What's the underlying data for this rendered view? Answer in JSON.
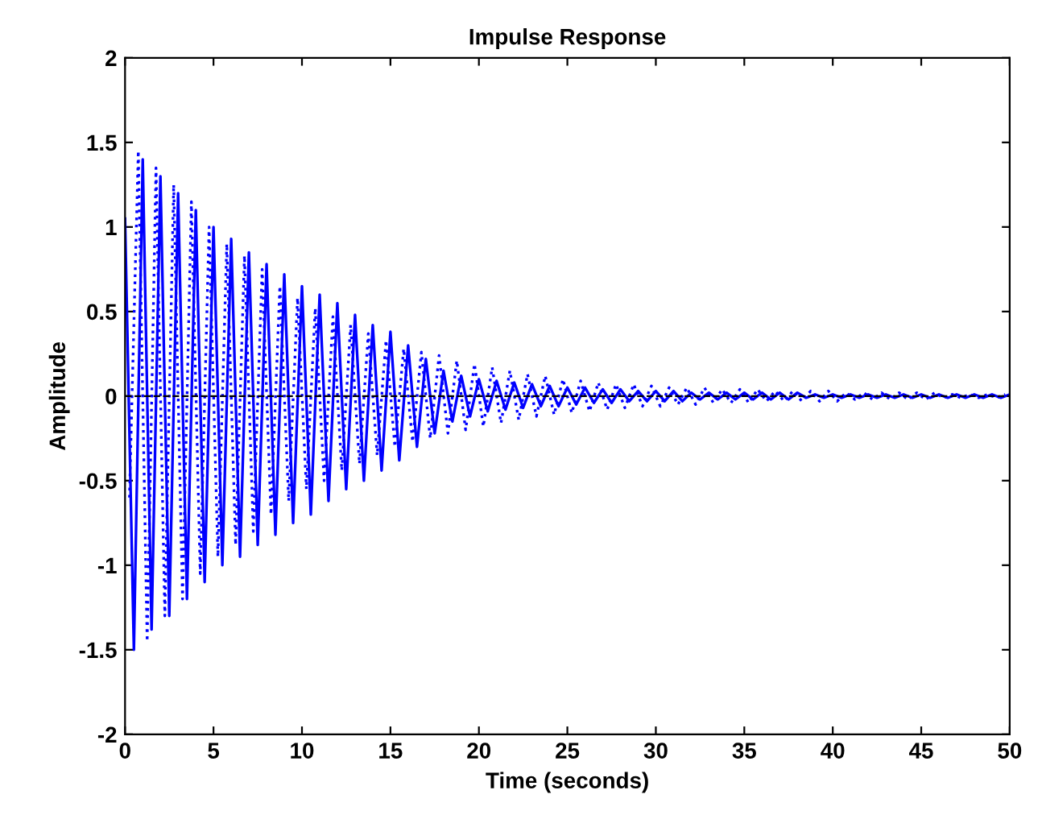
{
  "chart_data": {
    "type": "line",
    "title": "Impulse Response",
    "xlabel": "Time (seconds)",
    "ylabel": "Amplitude",
    "xlim": [
      0,
      50
    ],
    "xticks": [
      0,
      5,
      10,
      15,
      20,
      25,
      30,
      35,
      40,
      45,
      50
    ],
    "ylim": [
      -2,
      2
    ],
    "yticks": [
      -2,
      -1.5,
      -1,
      -0.5,
      0,
      0.5,
      1,
      1.5,
      2
    ],
    "grid": false,
    "legend": false,
    "ref_lines": [
      {
        "axis": "y",
        "value": 0,
        "color": "#000000",
        "line_style": "dashed"
      }
    ],
    "series": [
      {
        "color": "#0000ff",
        "line_style": "solid",
        "x": [
          0,
          0.5,
          1,
          1.5,
          2,
          2.5,
          3,
          3.5,
          4,
          4.5,
          5,
          5.5,
          6,
          6.5,
          7,
          7.5,
          8,
          8.5,
          9,
          9.5,
          10,
          10.5,
          11,
          11.5,
          12,
          12.5,
          13,
          13.5,
          14,
          14.5,
          15,
          15.5,
          16,
          16.5,
          17,
          17.5,
          18,
          18.5,
          19,
          19.5,
          20,
          20.5,
          21,
          21.5,
          22,
          22.5,
          23,
          23.5,
          24,
          24.5,
          25,
          25.5,
          26,
          26.5,
          27,
          27.5,
          28,
          28.5,
          29,
          29.5,
          30,
          30.5,
          31,
          31.5,
          32,
          32.5,
          33,
          33.5,
          34,
          34.5,
          35,
          35.5,
          36,
          36.5,
          37,
          37.5,
          38,
          38.5,
          39,
          39.5,
          40,
          40.5,
          41,
          41.5,
          42,
          42.5,
          43,
          43.5,
          44,
          44.5,
          45,
          45.5,
          46,
          46.5,
          47,
          47.5,
          48,
          48.5,
          49,
          49.5,
          50
        ],
        "values": [
          1.05,
          -1.5,
          1.4,
          -1.38,
          1.3,
          -1.3,
          1.2,
          -1.2,
          1.1,
          -1.1,
          1.0,
          -1.0,
          0.93,
          -0.95,
          0.85,
          -0.88,
          0.78,
          -0.82,
          0.72,
          -0.75,
          0.65,
          -0.7,
          0.6,
          -0.62,
          0.55,
          -0.55,
          0.48,
          -0.5,
          0.42,
          -0.44,
          0.38,
          -0.38,
          0.3,
          -0.3,
          0.22,
          -0.22,
          0.15,
          -0.15,
          0.12,
          -0.12,
          0.1,
          -0.09,
          0.09,
          -0.08,
          0.08,
          -0.07,
          0.07,
          -0.06,
          0.06,
          -0.06,
          0.05,
          -0.05,
          0.05,
          -0.04,
          0.04,
          -0.04,
          0.04,
          -0.03,
          0.03,
          -0.03,
          0.03,
          -0.03,
          0.03,
          -0.03,
          0.02,
          -0.02,
          0.02,
          -0.02,
          0.02,
          -0.02,
          0.02,
          -0.02,
          0.02,
          -0.02,
          0.02,
          -0.02,
          0.02,
          -0.01,
          0.01,
          -0.01,
          0.01,
          -0.01,
          0.01,
          -0.01,
          0.01,
          -0.01,
          0.01,
          -0.01,
          0.01,
          -0.01,
          0.01,
          -0.01,
          0.01,
          -0.01,
          0.01,
          -0.01,
          0.01,
          -0.01,
          0.01,
          -0.01,
          0.01
        ]
      },
      {
        "color": "#0000ff",
        "line_style": "dotted",
        "x": [
          0.25,
          0.75,
          1.25,
          1.75,
          2.25,
          2.75,
          3.25,
          3.75,
          4.25,
          4.75,
          5.25,
          5.75,
          6.25,
          6.75,
          7.25,
          7.75,
          8.25,
          8.75,
          9.25,
          9.75,
          10.25,
          10.75,
          11.25,
          11.75,
          12.25,
          12.75,
          13.25,
          13.75,
          14.25,
          14.75,
          15.25,
          15.75,
          16.25,
          16.75,
          17.25,
          17.75,
          18.25,
          18.75,
          19.25,
          19.75,
          20.25,
          20.75,
          21.25,
          21.75,
          22.25,
          22.75,
          23.25,
          23.75,
          24.25,
          24.75,
          25.25,
          25.75,
          26.25,
          26.75,
          27.25,
          27.75,
          28.25,
          28.75,
          29.25,
          29.75,
          30.25,
          30.75,
          31.25,
          31.75,
          32.25,
          32.75,
          33.25,
          33.75,
          34.25,
          34.75,
          35.25,
          35.75,
          36.25,
          36.75,
          37.25,
          37.75,
          38.25,
          38.75,
          39.25,
          39.75,
          40.25,
          40.75,
          41.25,
          41.75,
          42.25,
          42.75,
          43.25,
          43.75,
          44.25,
          44.75,
          45.25,
          45.75,
          46.25,
          46.75,
          47.25,
          47.75,
          48.25,
          48.75,
          49.25,
          49.75
        ],
        "values": [
          -0.6,
          1.45,
          -1.45,
          1.35,
          -1.3,
          1.25,
          -1.2,
          1.15,
          -1.05,
          1.0,
          -0.95,
          0.9,
          -0.88,
          0.83,
          -0.8,
          0.75,
          -0.7,
          0.65,
          -0.62,
          0.58,
          -0.55,
          0.52,
          -0.5,
          0.47,
          -0.44,
          0.42,
          -0.4,
          0.37,
          -0.35,
          0.33,
          -0.3,
          0.28,
          -0.27,
          0.26,
          -0.25,
          0.24,
          -0.22,
          0.21,
          -0.2,
          0.19,
          -0.18,
          0.17,
          -0.16,
          0.15,
          -0.14,
          0.13,
          -0.12,
          0.12,
          -0.11,
          0.1,
          -0.1,
          0.09,
          -0.09,
          0.08,
          -0.08,
          0.07,
          -0.07,
          0.07,
          -0.06,
          0.06,
          -0.06,
          0.05,
          -0.05,
          0.05,
          -0.05,
          0.05,
          -0.04,
          0.04,
          -0.04,
          0.04,
          -0.04,
          0.04,
          -0.03,
          0.03,
          -0.03,
          0.03,
          -0.03,
          0.03,
          -0.03,
          0.03,
          -0.03,
          0.02,
          -0.02,
          0.02,
          -0.02,
          0.02,
          -0.02,
          0.02,
          -0.02,
          0.02,
          -0.02,
          0.02,
          -0.01,
          0.01,
          -0.01,
          0.01,
          -0.01,
          0.01,
          -0.01,
          0.01
        ]
      }
    ]
  }
}
